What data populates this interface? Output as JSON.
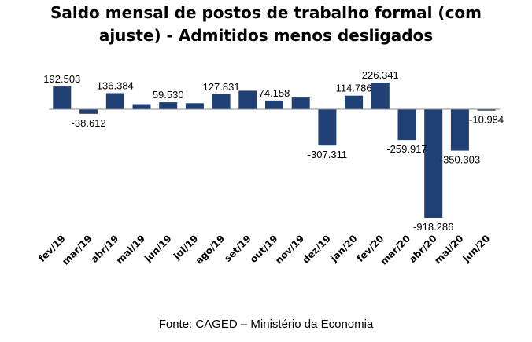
{
  "title_line1": "Saldo mensal de postos de trabalho formal (com",
  "title_line2": "ajuste) - Admitidos menos desligados",
  "source": "Fonte: CAGED – Ministério da Economia",
  "colors": {
    "bar": "#1f3f75",
    "axis": "#8c8c8c",
    "text": "#000000"
  },
  "chart_data": {
    "type": "bar",
    "title": "Saldo mensal de postos de trabalho formal (com ajuste) - Admitidos menos desligados",
    "categories": [
      "fev/19",
      "mar/19",
      "abr/19",
      "mai/19",
      "jun/19",
      "jul/19",
      "ago/19",
      "set/19",
      "out/19",
      "nov/19",
      "dez/19",
      "jan/20",
      "fev/20",
      "mar/20",
      "abr/20",
      "mai/20",
      "jun/20"
    ],
    "values": [
      192503,
      -38612,
      136384,
      43000,
      59530,
      51000,
      127831,
      157000,
      74158,
      99000,
      -307311,
      114786,
      226341,
      -259917,
      -918286,
      -350303,
      -10984
    ],
    "data_labels": [
      "192.503",
      "-38.612",
      "136.384",
      "",
      "59.530",
      "",
      "127.831",
      "",
      "74.158",
      "",
      "-307.311",
      "114.786",
      "226.341",
      "-259.917",
      "-918.286",
      "-350.303",
      "-10.984"
    ],
    "ylim": [
      -918286,
      226341
    ],
    "grid": false,
    "legend": "none"
  }
}
